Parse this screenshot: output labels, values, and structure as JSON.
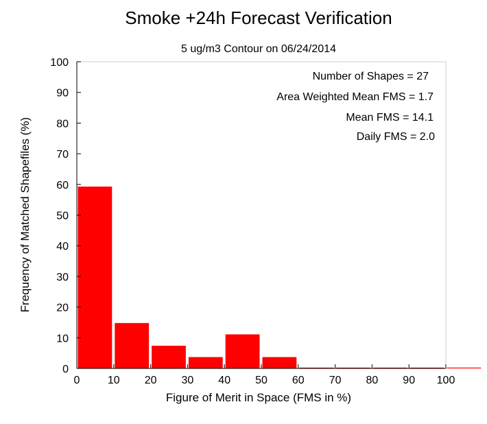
{
  "chart_data": {
    "type": "bar",
    "title": "Smoke +24h Forecast Verification",
    "subtitle": "5 ug/m3 Contour on 06/24/2014",
    "xlabel": "Figure of Merit in Space (FMS in %)",
    "ylabel": "Frequency of Matched Shapefiles (%)",
    "xlim": [
      0,
      100
    ],
    "ylim": [
      0,
      100
    ],
    "xticks": [
      "0",
      "10",
      "20",
      "30",
      "40",
      "50",
      "60",
      "70",
      "80",
      "90",
      "100"
    ],
    "yticks": [
      "0",
      "10",
      "20",
      "30",
      "40",
      "50",
      "60",
      "70",
      "80",
      "90",
      "100"
    ],
    "bins": [
      {
        "from": 0,
        "to": 10,
        "value": 59.3
      },
      {
        "from": 10,
        "to": 20,
        "value": 14.8
      },
      {
        "from": 20,
        "to": 30,
        "value": 7.4
      },
      {
        "from": 30,
        "to": 40,
        "value": 3.7
      },
      {
        "from": 40,
        "to": 50,
        "value": 11.1
      },
      {
        "from": 50,
        "to": 60,
        "value": 3.7
      },
      {
        "from": 60,
        "to": 70,
        "value": 0
      },
      {
        "from": 70,
        "to": 80,
        "value": 0
      },
      {
        "from": 80,
        "to": 90,
        "value": 0
      },
      {
        "from": 90,
        "to": 100,
        "value": 0
      },
      {
        "from": 100,
        "to": 110,
        "value": 0
      }
    ],
    "bar_color": "#ff0000",
    "annotations": [
      "Number of Shapes = 27",
      "Area Weighted Mean FMS = 1.7",
      "Mean FMS = 14.1",
      "Daily FMS = 2.0"
    ],
    "grid": false
  }
}
